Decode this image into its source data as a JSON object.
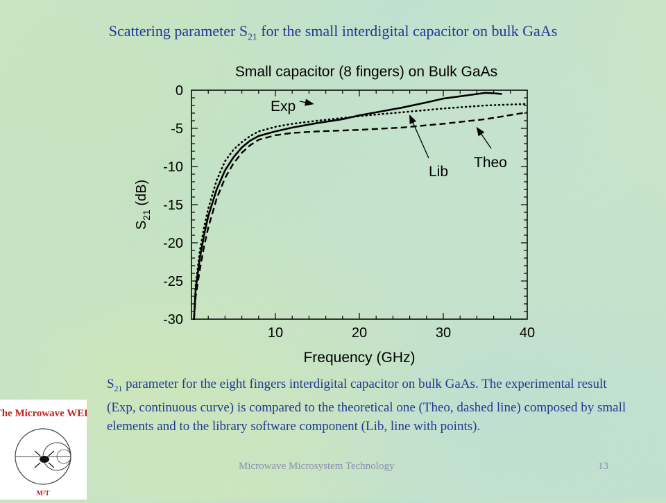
{
  "slide": {
    "title_pre": "Scattering parameter S",
    "title_sub": "21",
    "title_post": " for the small interdigital capacitor on bulk GaAs",
    "caption_pre": "S",
    "caption_sub": "21",
    "caption_post": " parameter for the eight fingers interdigital capacitor on bulk GaAs. The experimental result (Exp, continuous curve) is compared to the theoretical one (Theo, dashed line) composed by small elements and to the library software component (Lib, line with points).",
    "footer": "Microwave Microsystem Technology",
    "page_number": "13",
    "logo_text": "The Microwave WEB",
    "logo_mark": "M²T"
  },
  "colors": {
    "title": "#1f3a93",
    "caption": "#1f3a93",
    "footer": "#8a8fb0",
    "logo_text": "#c0221a"
  },
  "chart_data": {
    "type": "line",
    "title": "Small capacitor (8 fingers) on Bulk GaAs",
    "xlabel": "Frequency (GHz)",
    "ylabel_main": "S",
    "ylabel_sub": "21",
    "ylabel_suffix": " (dB)",
    "xlim": [
      0,
      40
    ],
    "ylim": [
      -30,
      0
    ],
    "xticks": [
      10,
      20,
      30,
      40
    ],
    "yticks": [
      0,
      -5,
      -10,
      -15,
      -20,
      -25,
      -30
    ],
    "grid": false,
    "legend": "annotations with arrows",
    "series": [
      {
        "name": "Exp",
        "style": "solid",
        "x": [
          0.3,
          0.5,
          1,
          1.5,
          2,
          3,
          4,
          5,
          6,
          7,
          8,
          10,
          12,
          15,
          18,
          20,
          22,
          25,
          28,
          30,
          32,
          34,
          35,
          36,
          37
        ],
        "y": [
          -30,
          -26,
          -22,
          -19,
          -16.5,
          -13,
          -10.5,
          -8.8,
          -7.5,
          -6.6,
          -6,
          -5.4,
          -4.9,
          -4.3,
          -3.8,
          -3.3,
          -2.9,
          -2.3,
          -1.6,
          -1.1,
          -0.8,
          -0.5,
          -0.35,
          -0.4,
          -0.5
        ]
      },
      {
        "name": "Theo",
        "style": "dashed",
        "x": [
          0.3,
          0.5,
          1,
          1.5,
          2,
          3,
          4,
          5,
          6,
          7,
          8,
          10,
          12,
          15,
          20,
          25,
          30,
          35,
          40
        ],
        "y": [
          -30,
          -27,
          -23.5,
          -20.5,
          -18,
          -14.2,
          -11.5,
          -9.6,
          -8.2,
          -7.2,
          -6.5,
          -5.9,
          -5.6,
          -5.4,
          -5.2,
          -4.9,
          -4.4,
          -3.8,
          -2.9
        ]
      },
      {
        "name": "Lib",
        "style": "dotted",
        "x": [
          0.3,
          0.5,
          1,
          1.5,
          2,
          3,
          4,
          5,
          6,
          7,
          8,
          10,
          12,
          15,
          20,
          25,
          30,
          35,
          40
        ],
        "y": [
          -30,
          -25.5,
          -21,
          -18,
          -15.5,
          -11.8,
          -9.3,
          -7.8,
          -6.8,
          -6,
          -5.4,
          -4.8,
          -4.4,
          -4,
          -3.4,
          -2.9,
          -2.4,
          -2,
          -1.8
        ]
      }
    ],
    "annotations": [
      {
        "text": "Exp",
        "series": "Exp",
        "target_x": 14.5,
        "target_y": -1.8
      },
      {
        "text": "Lib",
        "series": "Lib",
        "target_x": 26,
        "target_y": -3.3
      },
      {
        "text": "Theo",
        "series": "Theo",
        "target_x": 34,
        "target_y": -4.9
      }
    ]
  }
}
